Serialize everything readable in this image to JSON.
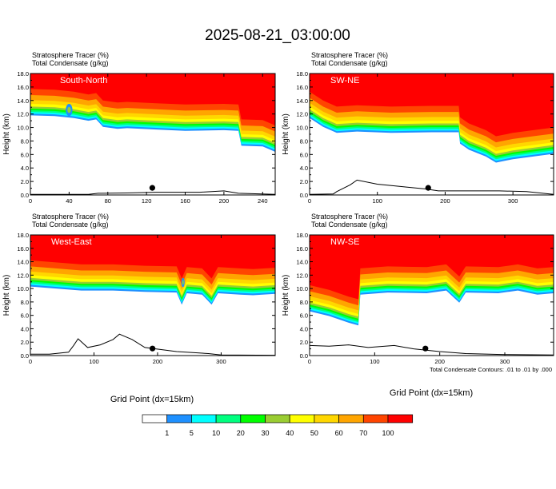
{
  "figure": {
    "title": "2025-08-21_03:00:00",
    "x_label": "Grid Point (dx=15km)",
    "contour_note": "Total Condensate Contours: .01 to .01 by .000"
  },
  "chart_data": [
    {
      "type": "heatmap",
      "label": "South-North",
      "header": [
        "Stratosphere Tracer    (%)",
        "Total Condensate    (g/kg)"
      ],
      "xlabel": "",
      "ylabel": "Height (km)",
      "xlim": [
        0,
        253
      ],
      "ylim": [
        0,
        18
      ],
      "xticks": [
        0,
        40,
        80,
        120,
        160,
        200,
        240
      ],
      "yticks": [
        "0.0",
        "2.0",
        "4.0",
        "6.0",
        "8.0",
        "10.0",
        "12.0",
        "14.0",
        "16.0",
        "18.0"
      ],
      "tropopause": [
        [
          0,
          15.7
        ],
        [
          25,
          15.6
        ],
        [
          45,
          15.3
        ],
        [
          60,
          14.9
        ],
        [
          68,
          15.1
        ],
        [
          75,
          14.0
        ],
        [
          90,
          13.7
        ],
        [
          100,
          13.8
        ],
        [
          130,
          13.6
        ],
        [
          160,
          13.4
        ],
        [
          200,
          13.5
        ],
        [
          215,
          13.4
        ],
        [
          218,
          11.2
        ],
        [
          240,
          11.1
        ],
        [
          253,
          10.3
        ]
      ],
      "blobs": [
        [
          40,
          12.6,
          3.5,
          0.9
        ]
      ],
      "terrain": [
        [
          0,
          0.1
        ],
        [
          60,
          0.1
        ],
        [
          70,
          0.25
        ],
        [
          100,
          0.3
        ],
        [
          130,
          0.4
        ],
        [
          175,
          0.4
        ],
        [
          200,
          0.6
        ],
        [
          215,
          0.25
        ],
        [
          253,
          0.1
        ]
      ],
      "marker_x": 126
    },
    {
      "type": "heatmap",
      "label": "SW-NE",
      "header": [
        "Stratosphere Tracer    (%)",
        "Total Condensate    (g/kg)"
      ],
      "xlabel": "",
      "ylabel": "Height (km)",
      "xlim": [
        0,
        360
      ],
      "ylim": [
        0,
        18
      ],
      "xticks": [
        0,
        100,
        200,
        300
      ],
      "yticks": [
        "0.0",
        "2.0",
        "4.0",
        "6.0",
        "8.0",
        "10.0",
        "12.0",
        "14.0",
        "16.0",
        "18.0"
      ],
      "tropopause": [
        [
          0,
          15.3
        ],
        [
          20,
          14.0
        ],
        [
          40,
          13.1
        ],
        [
          70,
          13.3
        ],
        [
          120,
          13.1
        ],
        [
          180,
          13.2
        ],
        [
          220,
          13.2
        ],
        [
          222,
          11.5
        ],
        [
          235,
          10.6
        ],
        [
          260,
          9.6
        ],
        [
          275,
          8.7
        ],
        [
          300,
          9.2
        ],
        [
          330,
          9.6
        ],
        [
          360,
          10.0
        ]
      ],
      "blobs": [],
      "terrain": [
        [
          0,
          0.1
        ],
        [
          35,
          0.15
        ],
        [
          40,
          0.5
        ],
        [
          60,
          1.5
        ],
        [
          70,
          2.2
        ],
        [
          100,
          1.6
        ],
        [
          140,
          1.2
        ],
        [
          170,
          0.9
        ],
        [
          190,
          0.6
        ],
        [
          230,
          0.6
        ],
        [
          280,
          0.6
        ],
        [
          320,
          0.5
        ],
        [
          340,
          0.3
        ],
        [
          360,
          0.1
        ]
      ],
      "marker_x": 175
    },
    {
      "type": "heatmap",
      "label": "West-East",
      "header": [
        "Stratosphere Tracer    (%)",
        "Total Condensate    (g/kg)"
      ],
      "xlabel": "Grid Point (dx=15km)",
      "ylabel": "Height (km)",
      "xlim": [
        0,
        385
      ],
      "ylim": [
        0,
        18
      ],
      "xticks": [
        0,
        100,
        200,
        300
      ],
      "yticks": [
        "0.0",
        "2.0",
        "4.0",
        "6.0",
        "8.0",
        "10.0",
        "12.0",
        "14.0",
        "16.0",
        "18.0"
      ],
      "tropopause": [
        [
          0,
          14.2
        ],
        [
          40,
          13.9
        ],
        [
          80,
          13.6
        ],
        [
          130,
          13.6
        ],
        [
          180,
          13.4
        ],
        [
          230,
          13.3
        ],
        [
          238,
          11.5
        ],
        [
          246,
          13.2
        ],
        [
          270,
          13.0
        ],
        [
          285,
          11.5
        ],
        [
          295,
          13.2
        ],
        [
          330,
          13.0
        ],
        [
          350,
          12.9
        ],
        [
          385,
          13.1
        ]
      ],
      "blobs": [
        [
          240,
          10.9,
          2.5,
          0.7
        ]
      ],
      "terrain": [
        [
          0,
          0.2
        ],
        [
          30,
          0.2
        ],
        [
          60,
          0.5
        ],
        [
          68,
          1.5
        ],
        [
          75,
          2.5
        ],
        [
          90,
          1.2
        ],
        [
          110,
          1.6
        ],
        [
          130,
          2.4
        ],
        [
          140,
          3.2
        ],
        [
          160,
          2.4
        ],
        [
          180,
          1.2
        ],
        [
          230,
          0.6
        ],
        [
          280,
          0.3
        ],
        [
          300,
          0.1
        ],
        [
          385,
          0.05
        ]
      ],
      "marker_x": 192
    },
    {
      "type": "heatmap",
      "label": "NW-SE",
      "header": [
        "Stratosphere Tracer    (%)",
        "Total Condensate    (g/kg)"
      ],
      "xlabel": "",
      "ylabel": "Height (km)",
      "xlim": [
        0,
        375
      ],
      "ylim": [
        0,
        18
      ],
      "xticks": [
        0,
        100,
        200,
        300
      ],
      "yticks": [
        "0.0",
        "2.0",
        "4.0",
        "6.0",
        "8.0",
        "10.0",
        "12.0",
        "14.0",
        "16.0",
        "18.0"
      ],
      "tropopause": [
        [
          0,
          10.5
        ],
        [
          30,
          9.8
        ],
        [
          60,
          8.8
        ],
        [
          75,
          8.4
        ],
        [
          78,
          13.0
        ],
        [
          120,
          13.3
        ],
        [
          180,
          13.2
        ],
        [
          210,
          13.6
        ],
        [
          230,
          11.8
        ],
        [
          240,
          13.3
        ],
        [
          290,
          13.2
        ],
        [
          320,
          13.6
        ],
        [
          350,
          13.0
        ],
        [
          375,
          13.2
        ]
      ],
      "blobs": [],
      "terrain": [
        [
          0,
          1.5
        ],
        [
          30,
          1.4
        ],
        [
          60,
          1.6
        ],
        [
          90,
          1.2
        ],
        [
          130,
          1.5
        ],
        [
          160,
          1.0
        ],
        [
          200,
          0.6
        ],
        [
          240,
          0.3
        ],
        [
          300,
          0.15
        ],
        [
          375,
          0.1
        ]
      ],
      "marker_x": 178
    }
  ],
  "colorbar": {
    "labels": [
      "1",
      "5",
      "10",
      "20",
      "30",
      "40",
      "50",
      "60",
      "70",
      "100"
    ],
    "colors": [
      "#ffffff",
      "#1e90ff",
      "#00ffff",
      "#00ff7f",
      "#00ff00",
      "#9acd32",
      "#ffff00",
      "#ffd700",
      "#ffa500",
      "#ff4500",
      "#ff0000"
    ]
  }
}
